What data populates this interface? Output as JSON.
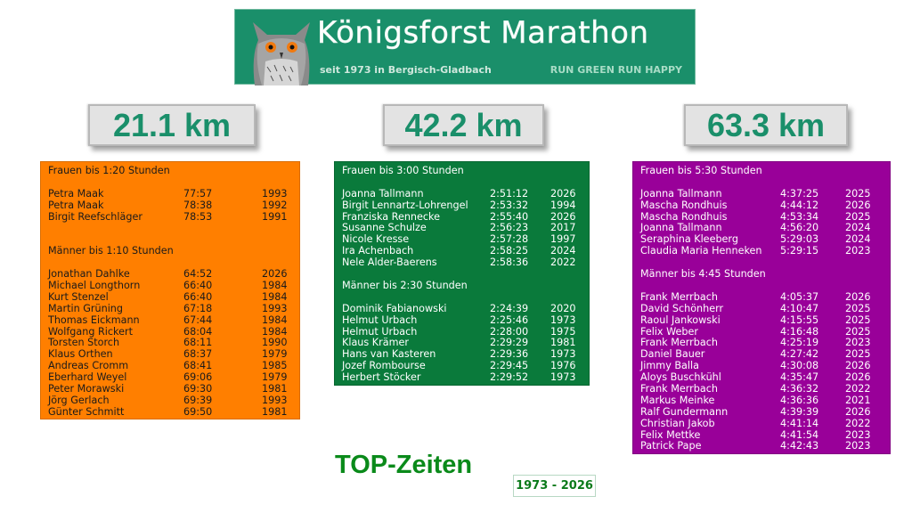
{
  "banner": {
    "title": "Königsforst Marathon",
    "subtitle": "seit 1973 in Bergisch-Gladbach",
    "slogan": "RUN GREEN RUN HAPPY",
    "logo_icon": "owl-icon",
    "background_color": "#1a8f6a"
  },
  "distances": {
    "half": {
      "label": "21.1 km",
      "color": "#ff7f00"
    },
    "marathon": {
      "label": "42.2 km",
      "color": "#0a7a3b"
    },
    "ultra": {
      "label": "63.3 km",
      "color": "#990099"
    }
  },
  "half": {
    "women": {
      "heading": "Frauen bis 1:20 Stunden",
      "rows": [
        {
          "name": "Petra Maak",
          "time": "77:57",
          "year": "1993"
        },
        {
          "name": "Petra Maak",
          "time": "78:38",
          "year": "1992"
        },
        {
          "name": "Birgit Reefschläger",
          "time": "78:53",
          "year": "1991"
        }
      ]
    },
    "men": {
      "heading": "Männer bis 1:10 Stunden",
      "rows": [
        {
          "name": "Jonathan Dahlke",
          "time": "64:52",
          "year": "2026"
        },
        {
          "name": "Michael Longthorn",
          "time": "66:40",
          "year": "1984"
        },
        {
          "name": "Kurt Stenzel",
          "time": "66:40",
          "year": "1984"
        },
        {
          "name": "Martin Grüning",
          "time": "67:18",
          "year": "1993"
        },
        {
          "name": "Thomas Eickmann",
          "time": "67:44",
          "year": "1984"
        },
        {
          "name": "Wolfgang Rickert",
          "time": "68:04",
          "year": "1984"
        },
        {
          "name": "Torsten Storch",
          "time": "68:11",
          "year": "1990"
        },
        {
          "name": "Klaus Orthen",
          "time": "68:37",
          "year": "1979"
        },
        {
          "name": "Andreas Cromm",
          "time": "68:41",
          "year": "1985"
        },
        {
          "name": "Eberhard Weyel",
          "time": "69:06",
          "year": "1979"
        },
        {
          "name": "Peter Morawski",
          "time": "69:30",
          "year": "1981"
        },
        {
          "name": "Jörg Gerlach",
          "time": "69:39",
          "year": "1993"
        },
        {
          "name": "Günter Schmitt",
          "time": "69:50",
          "year": "1981"
        }
      ]
    }
  },
  "marathon": {
    "women": {
      "heading": "Frauen bis 3:00 Stunden",
      "rows": [
        {
          "name": "Joanna Tallmann",
          "time": "2:51:12",
          "year": "2026"
        },
        {
          "name": "Birgit Lennartz-Lohrengel",
          "time": "2:53:32",
          "year": "1994"
        },
        {
          "name": "Franziska Rennecke",
          "time": "2:55:40",
          "year": "2026"
        },
        {
          "name": "Susanne Schulze",
          "time": "2:56:23",
          "year": "2017"
        },
        {
          "name": "Nicole Kresse",
          "time": "2:57:28",
          "year": "1997"
        },
        {
          "name": "Ira Achenbach",
          "time": "2:58:25",
          "year": "2024"
        },
        {
          "name": "Nele Alder-Baerens",
          "time": "2:58:36",
          "year": "2022"
        }
      ]
    },
    "men": {
      "heading": "Männer bis 2:30 Stunden",
      "rows": [
        {
          "name": "Dominik Fabianowski",
          "time": "2:24:39",
          "year": "2020"
        },
        {
          "name": "Helmut Urbach",
          "time": "2:25:46",
          "year": "1973"
        },
        {
          "name": "Helmut Urbach",
          "time": "2:28:00",
          "year": "1975"
        },
        {
          "name": "Klaus Krämer",
          "time": "2:29:29",
          "year": "1981"
        },
        {
          "name": "Hans van Kasteren",
          "time": "2:29:36",
          "year": "1973"
        },
        {
          "name": "Jozef Rombourse",
          "time": "2:29:45",
          "year": "1976"
        },
        {
          "name": "Herbert Stöcker",
          "time": "2:29:52",
          "year": "1973"
        }
      ]
    }
  },
  "ultra": {
    "women": {
      "heading": "Frauen bis 5:30 Stunden",
      "rows": [
        {
          "name": "Joanna Tallmann",
          "time": "4:37:25",
          "year": "2025"
        },
        {
          "name": "Mascha Rondhuis",
          "time": "4:44:12",
          "year": "2026"
        },
        {
          "name": "Mascha Rondhuis",
          "time": "4:53:34",
          "year": "2025"
        },
        {
          "name": "Joanna Tallmann",
          "time": "4:56:20",
          "year": "2024"
        },
        {
          "name": "Seraphina Kleeberg",
          "time": "5:29:03",
          "year": "2024"
        },
        {
          "name": "Claudia Maria Henneken",
          "time": "5:29:15",
          "year": "2023"
        }
      ]
    },
    "men": {
      "heading": "Männer bis 4:45 Stunden",
      "rows": [
        {
          "name": "Frank Merrbach",
          "time": "4:05:37",
          "year": "2026"
        },
        {
          "name": "David Schönherr",
          "time": "4:10:47",
          "year": "2025"
        },
        {
          "name": "Raoul Jankowski",
          "time": "4:15:55",
          "year": "2025"
        },
        {
          "name": "Felix Weber",
          "time": "4:16:48",
          "year": "2025"
        },
        {
          "name": "Frank Merrbach",
          "time": "4:25:19",
          "year": "2023"
        },
        {
          "name": "Daniel Bauer",
          "time": "4:27:42",
          "year": "2025"
        },
        {
          "name": "Jimmy Balla",
          "time": "4:30:08",
          "year": "2026"
        },
        {
          "name": "Aloys Buschkühl",
          "time": "4:35:47",
          "year": "2026"
        },
        {
          "name": "Frank Merrbach",
          "time": "4:36:32",
          "year": "2022"
        },
        {
          "name": "Markus Meinke",
          "time": "4:36:36",
          "year": "2021"
        },
        {
          "name": "Ralf Gundermann",
          "time": "4:39:39",
          "year": "2026"
        },
        {
          "name": "Christian Jakob",
          "time": "4:41:14",
          "year": "2022"
        },
        {
          "name": "Felix Mettke",
          "time": "4:41:54",
          "year": "2023"
        },
        {
          "name": "Patrick Pape",
          "time": "4:42:43",
          "year": "2023"
        }
      ]
    }
  },
  "footer": {
    "title": "TOP-Zeiten",
    "years": "1973 - 2026"
  }
}
